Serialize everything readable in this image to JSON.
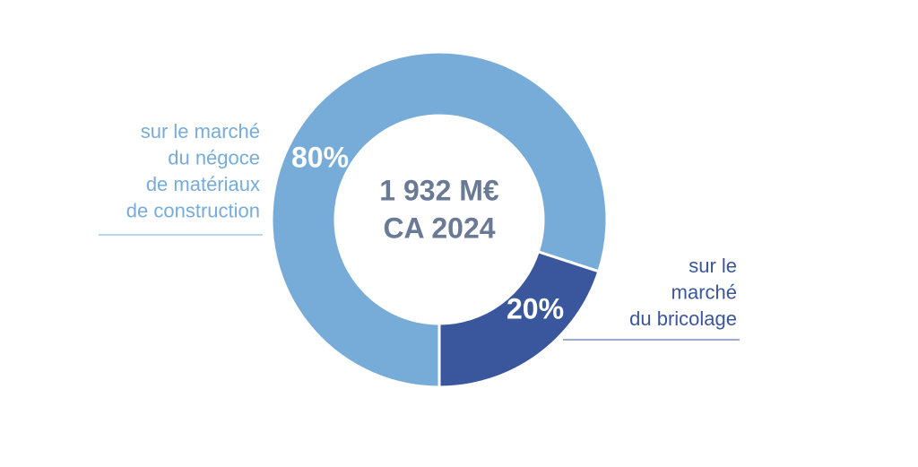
{
  "chart_data": {
    "type": "pie",
    "categories": [
      [
        "sur le marché",
        "du négoce",
        "de matériaux",
        "de construction"
      ],
      [
        "sur le",
        "marché",
        "du bricolage"
      ]
    ],
    "values": [
      80,
      20
    ],
    "value_labels": [
      "80%",
      "20%"
    ],
    "colors": [
      "#77acd9",
      "#3a579e"
    ],
    "center_text": [
      "1 932 M€",
      "CA 2024"
    ]
  }
}
